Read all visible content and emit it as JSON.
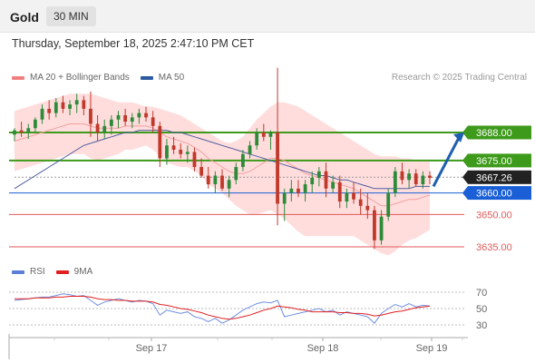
{
  "header": {
    "title": "Gold",
    "timeframe": "30 MIN"
  },
  "datetime": "Thursday, September 18, 2025 2:47:10 PM CET",
  "legend_main": [
    {
      "label": "MA 20 + Bollinger Bands",
      "color": "#f08080"
    },
    {
      "label": "MA 50",
      "color": "#2c5aa0"
    }
  ],
  "credit": "Research © 2025 Trading Central",
  "legend_rsi": [
    {
      "label": "RSI",
      "color": "#5b7fd6"
    },
    {
      "label": "9MA",
      "color": "#e02020"
    }
  ],
  "colors": {
    "up": "#2e8b3a",
    "down": "#c0392b",
    "resistance": "#3d9a1a",
    "support": "#e05a5a",
    "pivot": "#1a5fd6",
    "current": "#222222",
    "arrow": "#1f5fb0",
    "band": "#ffd7d7"
  },
  "chart_data": {
    "type": "candlestick",
    "x_ticks": [
      "Sep 17",
      "Sep 18",
      "Sep 19"
    ],
    "price_levels": [
      {
        "value": 3688.0,
        "label": "3688.00",
        "kind": "resistance"
      },
      {
        "value": 3675.0,
        "label": "3675.00",
        "kind": "resistance"
      },
      {
        "value": 3667.26,
        "label": "3667.26",
        "kind": "current"
      },
      {
        "value": 3660.0,
        "label": "3660.00",
        "kind": "pivot"
      },
      {
        "value": 3650.0,
        "label": "3650.00",
        "kind": "support"
      },
      {
        "value": 3635.0,
        "label": "3635.00",
        "kind": "support"
      }
    ],
    "arrow": {
      "direction": "up",
      "target": 3688.0
    },
    "candles": [
      [
        3687,
        3690,
        3684,
        3689
      ],
      [
        3689,
        3693,
        3686,
        3688
      ],
      [
        3688,
        3692,
        3685,
        3690
      ],
      [
        3690,
        3695,
        3688,
        3694
      ],
      [
        3694,
        3701,
        3692,
        3699
      ],
      [
        3699,
        3703,
        3694,
        3697
      ],
      [
        3697,
        3704,
        3695,
        3702
      ],
      [
        3702,
        3705,
        3697,
        3699
      ],
      [
        3699,
        3703,
        3696,
        3701
      ],
      [
        3701,
        3706,
        3697,
        3703
      ],
      [
        3703,
        3705,
        3696,
        3699
      ],
      [
        3699,
        3707,
        3686,
        3692
      ],
      [
        3692,
        3696,
        3684,
        3688
      ],
      [
        3688,
        3694,
        3685,
        3691
      ],
      [
        3691,
        3696,
        3687,
        3694
      ],
      [
        3694,
        3698,
        3690,
        3696
      ],
      [
        3696,
        3699,
        3691,
        3693
      ],
      [
        3693,
        3697,
        3690,
        3695
      ],
      [
        3695,
        3699,
        3692,
        3697
      ],
      [
        3697,
        3700,
        3693,
        3695
      ],
      [
        3695,
        3698,
        3688,
        3691
      ],
      [
        3691,
        3693,
        3672,
        3676
      ],
      [
        3676,
        3685,
        3673,
        3682
      ],
      [
        3682,
        3686,
        3678,
        3680
      ],
      [
        3680,
        3683,
        3676,
        3678
      ],
      [
        3678,
        3682,
        3674,
        3679
      ],
      [
        3679,
        3681,
        3670,
        3672
      ],
      [
        3672,
        3676,
        3667,
        3668
      ],
      [
        3668,
        3672,
        3662,
        3664
      ],
      [
        3664,
        3670,
        3660,
        3668
      ],
      [
        3668,
        3671,
        3661,
        3662
      ],
      [
        3662,
        3668,
        3658,
        3666
      ],
      [
        3666,
        3674,
        3664,
        3672
      ],
      [
        3672,
        3680,
        3670,
        3678
      ],
      [
        3678,
        3684,
        3676,
        3682
      ],
      [
        3682,
        3690,
        3680,
        3688
      ],
      [
        3688,
        3692,
        3684,
        3686
      ],
      [
        3686,
        3689,
        3680,
        3688
      ],
      [
        3688,
        3718,
        3645,
        3655
      ],
      [
        3655,
        3662,
        3647,
        3660
      ],
      [
        3660,
        3666,
        3656,
        3662
      ],
      [
        3662,
        3666,
        3658,
        3660
      ],
      [
        3660,
        3666,
        3656,
        3664
      ],
      [
        3664,
        3670,
        3660,
        3667
      ],
      [
        3667,
        3672,
        3663,
        3670
      ],
      [
        3670,
        3674,
        3658,
        3662
      ],
      [
        3662,
        3668,
        3660,
        3665
      ],
      [
        3665,
        3668,
        3653,
        3656
      ],
      [
        3656,
        3662,
        3653,
        3660
      ],
      [
        3660,
        3665,
        3655,
        3657
      ],
      [
        3657,
        3662,
        3650,
        3654
      ],
      [
        3654,
        3660,
        3648,
        3652
      ],
      [
        3652,
        3654,
        3634,
        3638
      ],
      [
        3638,
        3652,
        3636,
        3649
      ],
      [
        3649,
        3662,
        3647,
        3660
      ],
      [
        3660,
        3672,
        3658,
        3670
      ],
      [
        3670,
        3674,
        3664,
        3666
      ],
      [
        3666,
        3671,
        3662,
        3669
      ],
      [
        3669,
        3671,
        3663,
        3664
      ],
      [
        3664,
        3670,
        3662,
        3668
      ],
      [
        3668,
        3670,
        3664,
        3667
      ]
    ],
    "ma20": [
      3684,
      3685,
      3686,
      3687,
      3688,
      3689,
      3690,
      3691,
      3692,
      3692,
      3692,
      3691,
      3690,
      3690,
      3690,
      3690,
      3691,
      3691,
      3691,
      3691,
      3690,
      3688,
      3686,
      3685,
      3684,
      3683,
      3681,
      3679,
      3676,
      3674,
      3672,
      3670,
      3669,
      3669,
      3670,
      3672,
      3674,
      3676,
      3676,
      3675,
      3673,
      3671,
      3669,
      3668,
      3667,
      3666,
      3665,
      3664,
      3663,
      3662,
      3660,
      3658,
      3656,
      3654,
      3654,
      3655,
      3656,
      3657,
      3657,
      3658,
      3659
    ],
    "bb_upper": [
      3698,
      3699,
      3700,
      3701,
      3702,
      3703,
      3704,
      3705,
      3706,
      3706,
      3706,
      3706,
      3705,
      3704,
      3703,
      3702,
      3702,
      3702,
      3701,
      3700,
      3700,
      3699,
      3698,
      3697,
      3696,
      3694,
      3692,
      3690,
      3688,
      3686,
      3684,
      3683,
      3684,
      3686,
      3690,
      3694,
      3697,
      3700,
      3702,
      3702,
      3701,
      3700,
      3698,
      3696,
      3694,
      3692,
      3690,
      3688,
      3686,
      3684,
      3682,
      3680,
      3678,
      3677,
      3677,
      3677,
      3676,
      3676,
      3675,
      3675,
      3675
    ],
    "bb_lower": [
      3670,
      3671,
      3672,
      3673,
      3674,
      3675,
      3676,
      3677,
      3678,
      3678,
      3678,
      3676,
      3675,
      3676,
      3677,
      3678,
      3680,
      3680,
      3681,
      3682,
      3680,
      3677,
      3674,
      3673,
      3672,
      3672,
      3670,
      3668,
      3664,
      3662,
      3660,
      3657,
      3654,
      3652,
      3650,
      3650,
      3651,
      3652,
      3650,
      3648,
      3645,
      3642,
      3640,
      3640,
      3640,
      3640,
      3640,
      3640,
      3640,
      3640,
      3638,
      3636,
      3634,
      3632,
      3631,
      3633,
      3636,
      3638,
      3639,
      3641,
      3643
    ],
    "ma50": [
      3662,
      3664,
      3666,
      3668,
      3670,
      3672,
      3674,
      3676,
      3678,
      3680,
      3682,
      3683,
      3684,
      3685,
      3686,
      3687,
      3688,
      3688,
      3689,
      3689,
      3689,
      3689,
      3689,
      3688,
      3688,
      3687,
      3686,
      3685,
      3684,
      3683,
      3682,
      3681,
      3680,
      3679,
      3678,
      3677,
      3676,
      3675,
      3674,
      3673,
      3672,
      3671,
      3670,
      3669,
      3668,
      3668,
      3667,
      3666,
      3666,
      3665,
      3664,
      3663,
      3662,
      3662,
      3662,
      3662,
      3662,
      3662,
      3663,
      3663,
      3663
    ],
    "rsi": {
      "ticks": [
        70,
        50,
        30
      ],
      "values": [
        60,
        61,
        62,
        63,
        64,
        64,
        66,
        68,
        67,
        65,
        66,
        60,
        54,
        58,
        60,
        62,
        60,
        58,
        60,
        59,
        56,
        42,
        48,
        46,
        44,
        46,
        40,
        38,
        34,
        38,
        32,
        36,
        42,
        48,
        52,
        56,
        58,
        57,
        60,
        40,
        42,
        44,
        46,
        48,
        50,
        46,
        48,
        42,
        46,
        44,
        42,
        40,
        32,
        44,
        50,
        55,
        52,
        56,
        52,
        54,
        53
      ],
      "ma9": [
        62,
        62,
        62,
        63,
        63,
        63,
        64,
        64,
        65,
        65,
        65,
        64,
        62,
        61,
        61,
        60,
        60,
        59,
        59,
        59,
        58,
        55,
        54,
        52,
        50,
        49,
        47,
        45,
        42,
        40,
        38,
        37,
        38,
        40,
        42,
        45,
        48,
        50,
        53,
        52,
        51,
        49,
        48,
        46,
        46,
        46,
        46,
        45,
        45,
        44,
        44,
        43,
        41,
        42,
        44,
        46,
        47,
        49,
        51,
        52,
        53
      ]
    }
  }
}
